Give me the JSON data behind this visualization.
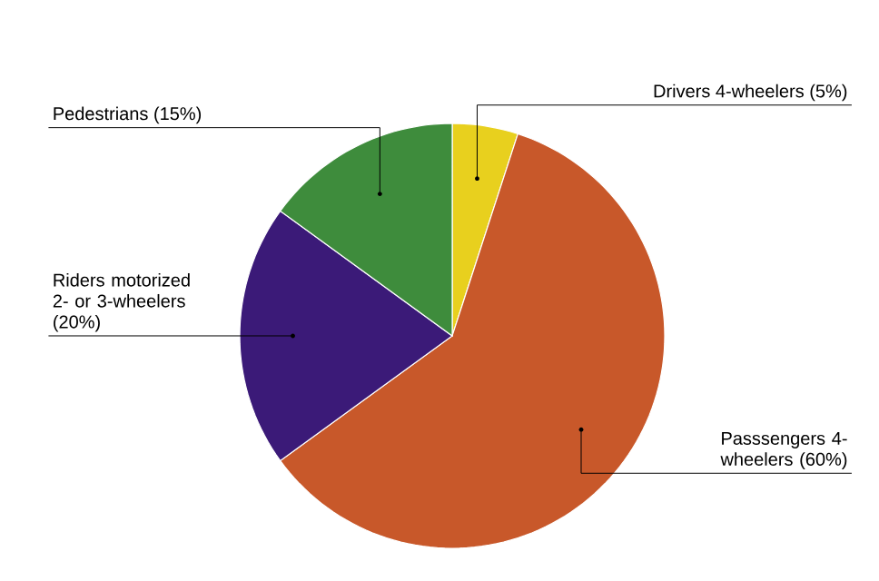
{
  "chart_data": {
    "type": "pie",
    "categories": [
      "Drivers 4-wheelers (5%)",
      "Passsengers 4-wheelers (60%)",
      "Riders motorized 2- or 3-wheelers (20%)",
      "Pedestrians (15%)"
    ],
    "values": [
      5,
      60,
      20,
      15
    ],
    "colors": [
      "#e8d01e",
      "#c8582a",
      "#3b1a78",
      "#3e8c3c"
    ]
  }
}
